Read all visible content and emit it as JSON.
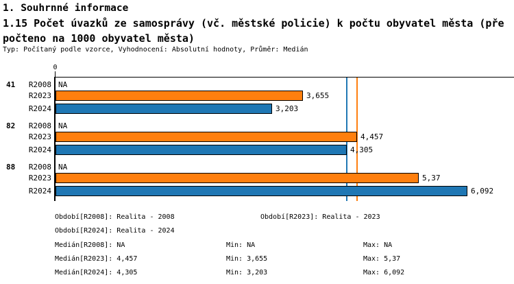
{
  "header": {
    "section_title": "1. Souhrnné informace",
    "chart_title_line1": "1.15 Počet úvazků ze samosprávy (vč. městské policie) k počtu obyvatel města (pře",
    "chart_title_line2": "počteno na 1000 obyvatel města)",
    "chart_title_full": "1.15 Počet úvazků ze samosprávy (vč. městské policie) k počtu obyvatel města (přepočteno na 1000 obyvatel města)",
    "meta": "Typ: Počítaný podle vzorce, Vyhodnocení: Absolutní hodnoty, Průměr: Medián"
  },
  "colors": {
    "r2023_orange": "#ff7f0e",
    "r2024_blue": "#1f77b4",
    "axis_black": "#000000"
  },
  "chart_data": {
    "type": "bar",
    "orientation": "horizontal",
    "axis": {
      "origin_tick_label": "0",
      "xlim": [
        0,
        6.8
      ],
      "grid": false
    },
    "series_labels": [
      "R2008",
      "R2023",
      "R2024"
    ],
    "groups": [
      {
        "id": "41",
        "rows": [
          {
            "series": "R2008",
            "value": null,
            "label": "NA"
          },
          {
            "series": "R2023",
            "value": 3.655,
            "label": "3,655"
          },
          {
            "series": "R2024",
            "value": 3.203,
            "label": "3,203"
          }
        ]
      },
      {
        "id": "82",
        "rows": [
          {
            "series": "R2008",
            "value": null,
            "label": "NA"
          },
          {
            "series": "R2023",
            "value": 4.457,
            "label": "4,457"
          },
          {
            "series": "R2024",
            "value": 4.305,
            "label": "4,305"
          }
        ]
      },
      {
        "id": "88",
        "rows": [
          {
            "series": "R2008",
            "value": null,
            "label": "NA"
          },
          {
            "series": "R2023",
            "value": 5.37,
            "label": "5,37"
          },
          {
            "series": "R2024",
            "value": 6.092,
            "label": "6,092"
          }
        ]
      }
    ],
    "median_lines": [
      {
        "series": "R2024",
        "value": 4.305
      },
      {
        "series": "R2023",
        "value": 4.457
      }
    ]
  },
  "footer": {
    "obdobi_r2008": "Období[R2008]: Realita - 2008",
    "obdobi_r2023": "Období[R2023]: Realita - 2023",
    "obdobi_r2024": "Období[R2024]: Realita - 2024",
    "median_r2008": "Medián[R2008]: NA",
    "min_r2008": "Min: NA",
    "max_r2008": "Max: NA",
    "median_r2023": "Medián[R2023]: 4,457",
    "min_r2023": "Min: 3,655",
    "max_r2023": "Max: 5,37",
    "median_r2024": "Medián[R2024]: 4,305",
    "min_r2024": "Min: 3,203",
    "max_r2024": "Max: 6,092"
  }
}
